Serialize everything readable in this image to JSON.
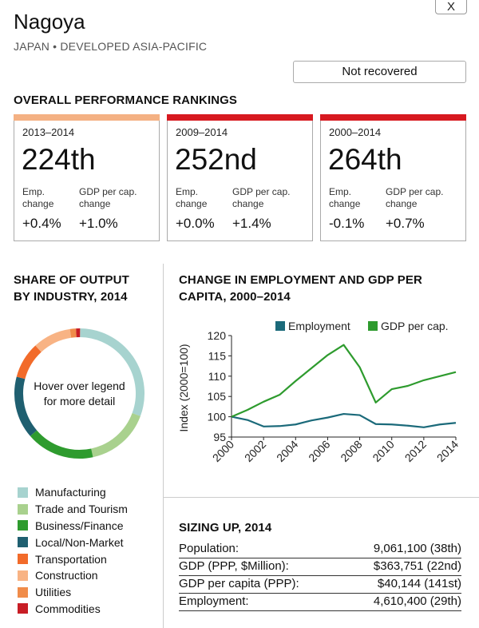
{
  "header": {
    "city": "Nagoya",
    "region": "JAPAN • DEVELOPED ASIA-PACIFIC",
    "close_label": "X",
    "status": "Not recovered"
  },
  "rankings": {
    "title": "OVERALL PERFORMANCE RANKINGS",
    "emp_label_1": "Emp.",
    "emp_label_2": "change",
    "gdp_label_1": "GDP per cap.",
    "gdp_label_2": "change",
    "cards": [
      {
        "period": "2013–2014",
        "rank": "224th",
        "emp": "+0.4%",
        "gdp": "+1.0%",
        "bar_color": "#f4b183"
      },
      {
        "period": "2009–2014",
        "rank": "252nd",
        "emp": "+0.0%",
        "gdp": "+1.4%",
        "bar_color": "#d71920"
      },
      {
        "period": "2000–2014",
        "rank": "264th",
        "emp": "-0.1%",
        "gdp": "+0.7%",
        "bar_color": "#d71920"
      }
    ]
  },
  "share": {
    "title_line1": "SHARE OF OUTPUT",
    "title_line2": "BY INDUSTRY, 2014",
    "center_text": "Hover over legend for more detail",
    "industries": [
      {
        "name": "Manufacturing",
        "color": "#a7d3cf",
        "share": 0.305
      },
      {
        "name": "Trade and Tourism",
        "color": "#a9d18e",
        "share": 0.16
      },
      {
        "name": "Business/Finance",
        "color": "#2e9b2e",
        "share": 0.17
      },
      {
        "name": "Local/Non-Market",
        "color": "#1f5f70",
        "share": 0.155
      },
      {
        "name": "Transportation",
        "color": "#f26b2a",
        "share": 0.09
      },
      {
        "name": "Construction",
        "color": "#f8b384",
        "share": 0.095
      },
      {
        "name": "Utilities",
        "color": "#f08c4a",
        "share": 0.015
      },
      {
        "name": "Commodities",
        "color": "#c81d25",
        "share": 0.01
      }
    ]
  },
  "change_chart": {
    "title_line1": "CHANGE IN EMPLOYMENT AND GDP PER",
    "title_line2": "CAPITA, 2000–2014"
  },
  "chart_data": {
    "type": "line",
    "ylabel": "Index (2000=100)",
    "xlabel": "",
    "ylim": [
      95,
      120
    ],
    "yticks": [
      95,
      100,
      105,
      110,
      115,
      120
    ],
    "xticks": [
      2000,
      2002,
      2004,
      2006,
      2008,
      2010,
      2012,
      2014
    ],
    "x": [
      2000,
      2001,
      2002,
      2003,
      2004,
      2005,
      2006,
      2007,
      2008,
      2009,
      2010,
      2011,
      2012,
      2013,
      2014
    ],
    "legend_position": "top",
    "series": [
      {
        "name": "Employment",
        "color": "#1b6a7a",
        "values": [
          100,
          99.2,
          97.6,
          97.7,
          98.1,
          99.1,
          99.8,
          100.7,
          100.4,
          98.2,
          98.1,
          97.8,
          97.4,
          98.1,
          98.5
        ]
      },
      {
        "name": "GDP per cap.",
        "color": "#2e9b2e",
        "values": [
          100,
          101.7,
          103.7,
          105.4,
          108.8,
          112.0,
          115.2,
          117.7,
          112.2,
          103.5,
          106.8,
          107.6,
          109.0,
          110.0,
          111.0
        ]
      }
    ]
  },
  "sizing": {
    "title": "SIZING UP, 2014",
    "rows": [
      {
        "label": "Population:",
        "value": "9,061,100 (38th)"
      },
      {
        "label": "GDP (PPP, $Million):",
        "value": "$363,751 (22nd)"
      },
      {
        "label": "GDP per capita (PPP):",
        "value": "$40,144 (141st)"
      },
      {
        "label": "Employment:",
        "value": "4,610,400 (29th)"
      }
    ]
  }
}
